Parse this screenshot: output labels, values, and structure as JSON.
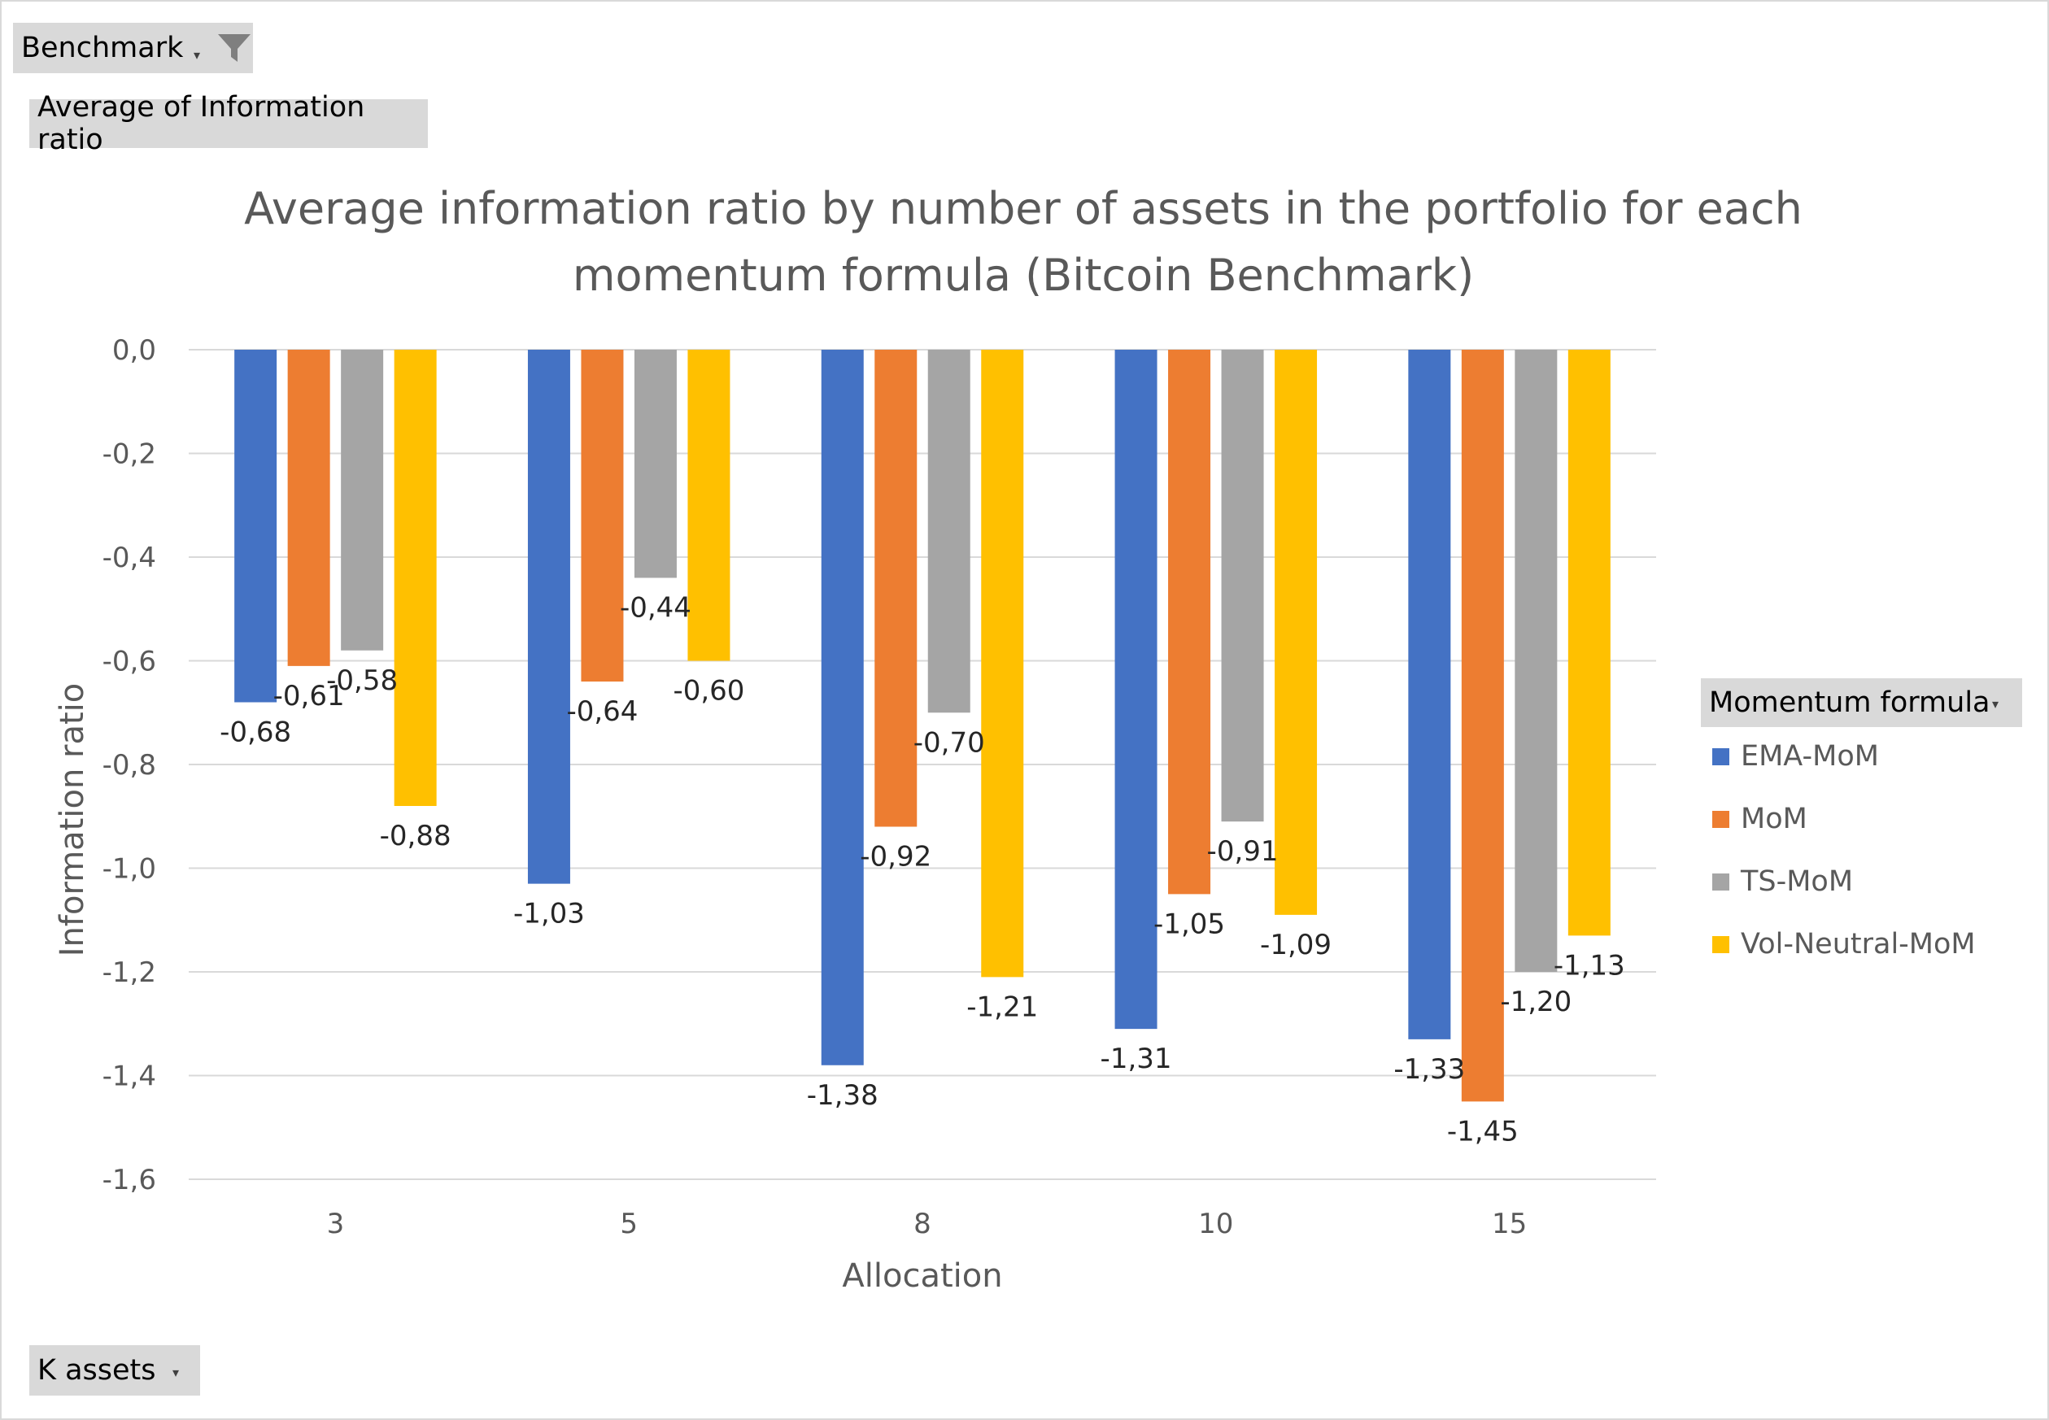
{
  "pivot_controls": {
    "filter_button_label": "Benchmark",
    "value_field_label": "Average of Information ratio",
    "axis_field_label": "K assets",
    "legend_field_label": "Momentum formula"
  },
  "chart_data": {
    "type": "bar",
    "title": "Average information ratio by number of assets in the portfolio for each momentum formula (Bitcoin Benchmark)",
    "title_lines": [
      "Average information ratio by number of assets in the portfolio for each",
      "momentum formula (Bitcoin Benchmark)"
    ],
    "xlabel": "Allocation",
    "ylabel": "Information ratio",
    "categories": [
      "3",
      "5",
      "8",
      "10",
      "15"
    ],
    "ylim": [
      -1.6,
      0
    ],
    "yticks": [
      0,
      -0.2,
      -0.4,
      -0.6,
      -0.8,
      -1.0,
      -1.2,
      -1.4,
      -1.6
    ],
    "ytick_labels": [
      "0,0",
      "-0,2",
      "-0,4",
      "-0,6",
      "-0,8",
      "-1,0",
      "-1,2",
      "-1,4",
      "-1,6"
    ],
    "grid": true,
    "legend_position": "right",
    "series": [
      {
        "name": "EMA-MoM",
        "color": "#4472c4",
        "values": [
          -0.68,
          -1.03,
          -1.38,
          -1.31,
          -1.33
        ],
        "labels": [
          "-0,68",
          "-1,03",
          "-1,38",
          "-1,31",
          "-1,33"
        ]
      },
      {
        "name": "MoM",
        "color": "#ed7d31",
        "values": [
          -0.61,
          -0.64,
          -0.92,
          -1.05,
          -1.45
        ],
        "labels": [
          "-0,61",
          "-0,64",
          "-0,92",
          "-1,05",
          "-1,45"
        ]
      },
      {
        "name": "TS-MoM",
        "color": "#a5a5a5",
        "values": [
          -0.58,
          -0.44,
          -0.7,
          -0.91,
          -1.2
        ],
        "labels": [
          "-0,58",
          "-0,44",
          "-0,70",
          "-0,91",
          "-1,20"
        ]
      },
      {
        "name": "Vol-Neutral-MoM",
        "color": "#ffc000",
        "values": [
          -0.88,
          -0.6,
          -1.21,
          -1.09,
          -1.13
        ],
        "labels": [
          "-0,88",
          "-0,60",
          "-1,21",
          "-1,09",
          "-1,13"
        ]
      }
    ]
  }
}
